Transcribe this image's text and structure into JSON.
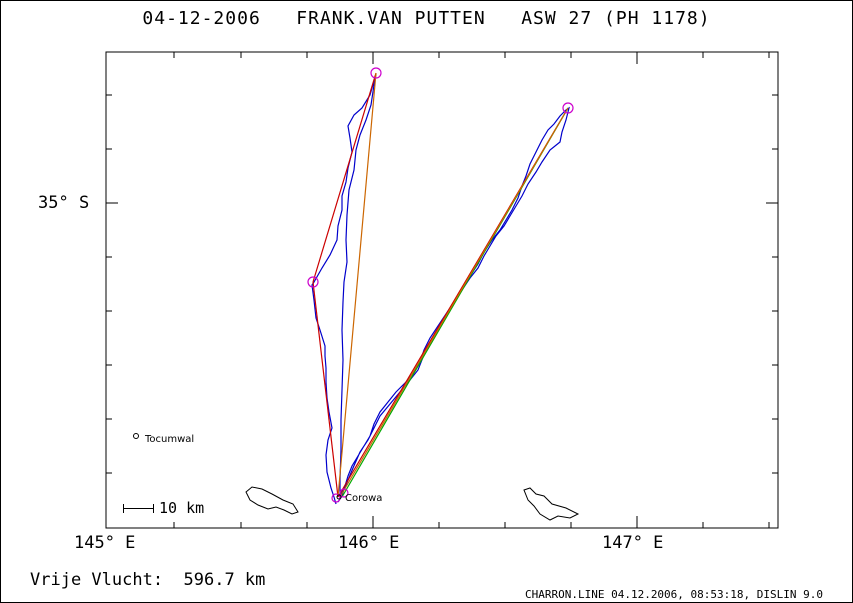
{
  "title": "04-12-2006   FRANK.VAN PUTTEN   ASW 27 (PH 1178)",
  "lat_label": "35° S",
  "lon_labels": [
    "145° E",
    "146° E",
    "147° E"
  ],
  "places": [
    {
      "name": "Tocumwal"
    },
    {
      "name": "Corowa"
    }
  ],
  "scale_label": "10 km",
  "distance_label": "Vrije Vlucht:  596.7 km",
  "footer": "CHARRON.LINE 04.12.2006, 08:53:18, DISLIN 9.0",
  "colors": {
    "track": "#0000cc",
    "task_leg": "#cc0000",
    "optimized_leg": "#cc6600",
    "alt_leg": "#00aa00",
    "turnpoint": "#cc00cc"
  }
}
